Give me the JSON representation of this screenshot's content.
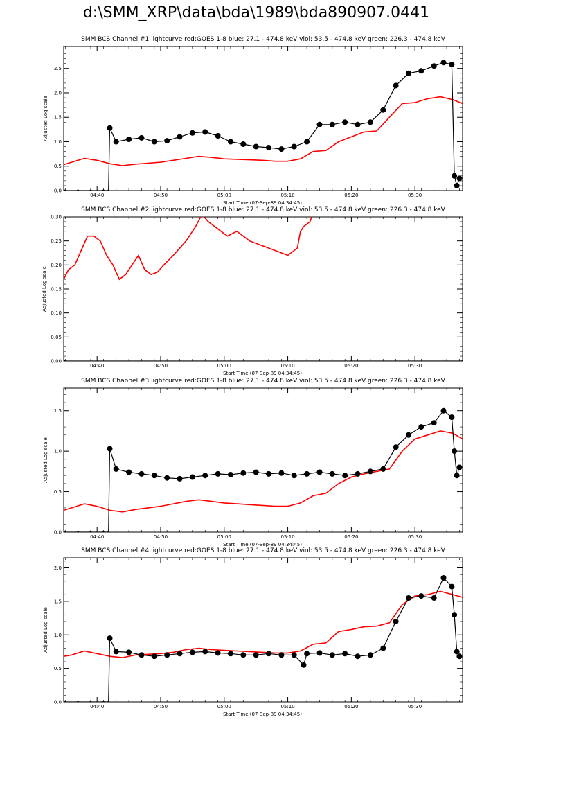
{
  "page": {
    "title": "d:\\SMM_XRP\\data\\bda\\1989\\bda890907.0441"
  },
  "colors": {
    "goes": "#ff0000",
    "bcs": "#000000",
    "axes": "#000000"
  },
  "chart_data": [
    {
      "type": "line",
      "title": "SMM BCS Channel #1 lightcurve  red:GOES 1-8  blue: 27.1 - 474.8 keV  viol: 53.5 - 474.8 keV  green: 226.3 - 474.8 keV",
      "xlabel": "Start Time (07-Sep-89 04:34:45)",
      "ylabel": "Adjusted Log scale",
      "xlim": [
        34.75,
        97.5
      ],
      "ylim": [
        0,
        2.95
      ],
      "x_ticks": [
        40,
        50,
        60,
        70,
        80,
        90
      ],
      "x_tick_labels": [
        "04:40",
        "04:50",
        "05:00",
        "05:10",
        "05:20",
        "05:30"
      ],
      "y_ticks": [
        0.0,
        0.5,
        1.0,
        1.5,
        2.0,
        2.5
      ],
      "y_tick_labels": [
        "0.0",
        "0.5",
        "1.0",
        "1.5",
        "2.0",
        "2.5"
      ],
      "grid": false,
      "series": [
        {
          "color": "#ff0000",
          "x": [
            34.75,
            36,
            38,
            40,
            42,
            44,
            46,
            48,
            50,
            52,
            54,
            56,
            58,
            60,
            62,
            64,
            66,
            68,
            70,
            72,
            74,
            76,
            78,
            80,
            82,
            84,
            86,
            88,
            90,
            92,
            94,
            96,
            97.5
          ],
          "y": [
            0.53,
            0.58,
            0.66,
            0.62,
            0.55,
            0.51,
            0.54,
            0.56,
            0.58,
            0.62,
            0.66,
            0.7,
            0.68,
            0.65,
            0.64,
            0.63,
            0.62,
            0.6,
            0.6,
            0.65,
            0.8,
            0.82,
            1.0,
            1.1,
            1.2,
            1.22,
            1.5,
            1.78,
            1.8,
            1.88,
            1.92,
            1.86,
            1.78
          ]
        },
        {
          "color": "#000000",
          "x": [
            35,
            37,
            39,
            41,
            41.8,
            42,
            43,
            45,
            47,
            49,
            51,
            53,
            55,
            57,
            59,
            61,
            63,
            65,
            67,
            69,
            71,
            73,
            75,
            77,
            79,
            81,
            83,
            85,
            87,
            89,
            91,
            93,
            94.5,
            95.8,
            96.2,
            96.6,
            97
          ],
          "y": [
            0,
            0,
            0,
            0,
            0,
            1.28,
            1.0,
            1.05,
            1.08,
            1.0,
            1.02,
            1.1,
            1.18,
            1.2,
            1.12,
            1.0,
            0.95,
            0.9,
            0.88,
            0.85,
            0.9,
            1.0,
            1.35,
            1.35,
            1.4,
            1.35,
            1.4,
            1.65,
            2.15,
            2.4,
            2.45,
            2.55,
            2.62,
            2.58,
            0.3,
            0.1,
            0.25
          ]
        }
      ]
    },
    {
      "type": "line",
      "title": "SMM BCS Channel #2 lightcurve  red:GOES 1-8  blue: 27.1 - 474.8 keV  viol: 53.5 - 474.8 keV  green: 226.3 - 474.8 keV",
      "xlabel": "Start Time (07-Sep-89 04:34:45)",
      "ylabel": "Adjusted Log scale",
      "xlim": [
        34.75,
        97.5
      ],
      "ylim": [
        0,
        0.3
      ],
      "x_ticks": [
        40,
        50,
        60,
        70,
        80,
        90
      ],
      "x_tick_labels": [
        "04:40",
        "04:50",
        "05:00",
        "05:10",
        "05:20",
        "05:30"
      ],
      "y_ticks": [
        0.0,
        0.05,
        0.1,
        0.15,
        0.2,
        0.25,
        0.3
      ],
      "y_tick_labels": [
        "0.00",
        "0.05",
        "0.10",
        "0.15",
        "0.20",
        "0.25",
        "0.30"
      ],
      "grid": false,
      "series": [
        {
          "color": "#ff0000",
          "x": [
            34.75,
            35.5,
            36.5,
            37.5,
            38.5,
            39.5,
            40.5,
            41.5,
            42.5,
            43.5,
            44.5,
            45.5,
            46.5,
            47.5,
            48.5,
            49.5,
            50.5,
            52,
            54,
            55.5,
            56.5,
            57.5,
            58.5,
            59.5,
            60.5,
            62,
            64,
            66,
            68,
            70,
            71.5,
            72,
            72.5,
            73.5,
            74
          ],
          "y": [
            0.17,
            0.19,
            0.2,
            0.23,
            0.26,
            0.26,
            0.25,
            0.22,
            0.2,
            0.17,
            0.18,
            0.2,
            0.22,
            0.19,
            0.18,
            0.185,
            0.2,
            0.22,
            0.25,
            0.28,
            0.305,
            0.29,
            0.28,
            0.27,
            0.26,
            0.27,
            0.25,
            0.24,
            0.23,
            0.22,
            0.235,
            0.27,
            0.28,
            0.29,
            0.31
          ]
        },
        {
          "color": "#000000",
          "x": [
            35,
            97.5
          ],
          "y": [
            0,
            0
          ]
        }
      ]
    },
    {
      "type": "line",
      "title": "SMM BCS Channel #3 lightcurve  red:GOES 1-8  blue: 27.1 - 474.8 keV  viol: 53.5 - 474.8 keV  green: 226.3 - 474.8 keV",
      "xlabel": "Start Time (07-Sep-89 04:34:45)",
      "ylabel": "Adjusted Log scale",
      "xlim": [
        34.75,
        97.5
      ],
      "ylim": [
        0,
        1.78
      ],
      "x_ticks": [
        40,
        50,
        60,
        70,
        80,
        90
      ],
      "x_tick_labels": [
        "04:40",
        "04:50",
        "05:00",
        "05:10",
        "05:20",
        "05:30"
      ],
      "y_ticks": [
        0.0,
        0.5,
        1.0,
        1.5
      ],
      "y_tick_labels": [
        "0.0",
        "0.5",
        "1.0",
        "1.5"
      ],
      "grid": false,
      "series": [
        {
          "color": "#ff0000",
          "x": [
            34.75,
            36,
            38,
            40,
            42,
            44,
            46,
            48,
            50,
            52,
            54,
            56,
            58,
            60,
            62,
            64,
            66,
            68,
            70,
            72,
            74,
            76,
            78,
            80,
            82,
            84,
            86,
            88,
            90,
            92,
            94,
            96,
            97.5
          ],
          "y": [
            0.27,
            0.3,
            0.35,
            0.32,
            0.27,
            0.25,
            0.28,
            0.3,
            0.32,
            0.35,
            0.38,
            0.4,
            0.38,
            0.36,
            0.35,
            0.34,
            0.33,
            0.32,
            0.32,
            0.36,
            0.45,
            0.48,
            0.6,
            0.68,
            0.72,
            0.75,
            0.78,
            1.0,
            1.15,
            1.2,
            1.25,
            1.22,
            1.15
          ]
        },
        {
          "color": "#000000",
          "x": [
            35,
            37,
            39,
            41,
            41.8,
            42,
            43,
            45,
            47,
            49,
            51,
            53,
            55,
            57,
            59,
            61,
            63,
            65,
            67,
            69,
            71,
            73,
            75,
            77,
            79,
            81,
            83,
            85,
            87,
            89,
            91,
            93,
            94.5,
            95.8,
            96.2,
            96.6,
            97
          ],
          "y": [
            0,
            0,
            0,
            0,
            0,
            1.03,
            0.78,
            0.74,
            0.72,
            0.7,
            0.67,
            0.66,
            0.68,
            0.7,
            0.72,
            0.71,
            0.73,
            0.74,
            0.72,
            0.73,
            0.7,
            0.72,
            0.74,
            0.72,
            0.7,
            0.72,
            0.75,
            0.78,
            1.05,
            1.2,
            1.3,
            1.35,
            1.5,
            1.42,
            1.0,
            0.7,
            0.8
          ]
        }
      ]
    },
    {
      "type": "line",
      "title": "SMM BCS Channel #4 lightcurve  red:GOES 1-8  blue: 27.1 - 474.8 keV  viol: 53.5 - 474.8 keV  green: 226.3 - 474.8 keV",
      "xlabel": "Start Time (07-Sep-89 04:34:45)",
      "ylabel": "Adjusted Log scale",
      "xlim": [
        34.75,
        97.5
      ],
      "ylim": [
        0,
        2.15
      ],
      "x_ticks": [
        40,
        50,
        60,
        70,
        80,
        90
      ],
      "x_tick_labels": [
        "04:40",
        "04:50",
        "05:00",
        "05:10",
        "05:20",
        "05:30"
      ],
      "y_ticks": [
        0.0,
        0.5,
        1.0,
        1.5,
        2.0
      ],
      "y_tick_labels": [
        "0.0",
        "0.5",
        "1.0",
        "1.5",
        "2.0"
      ],
      "grid": false,
      "series": [
        {
          "color": "#ff0000",
          "x": [
            34.75,
            36,
            38,
            40,
            42,
            44,
            46,
            48,
            50,
            52,
            54,
            56,
            58,
            60,
            62,
            64,
            66,
            68,
            70,
            72,
            74,
            76,
            78,
            80,
            82,
            84,
            86,
            88,
            90,
            92,
            94,
            96,
            97.5
          ],
          "y": [
            0.68,
            0.7,
            0.76,
            0.72,
            0.68,
            0.66,
            0.7,
            0.71,
            0.72,
            0.74,
            0.78,
            0.8,
            0.78,
            0.77,
            0.76,
            0.75,
            0.74,
            0.73,
            0.73,
            0.76,
            0.86,
            0.88,
            1.05,
            1.08,
            1.12,
            1.13,
            1.18,
            1.45,
            1.58,
            1.6,
            1.65,
            1.6,
            1.56
          ]
        },
        {
          "color": "#000000",
          "x": [
            35,
            37,
            39,
            41,
            41.8,
            42,
            43,
            45,
            47,
            49,
            51,
            53,
            55,
            57,
            59,
            61,
            63,
            65,
            67,
            69,
            71,
            72.5,
            73,
            75,
            77,
            79,
            81,
            83,
            85,
            87,
            89,
            91,
            93,
            94.5,
            95.8,
            96.2,
            96.6,
            97
          ],
          "y": [
            0,
            0,
            0,
            0,
            0,
            0.95,
            0.75,
            0.74,
            0.7,
            0.68,
            0.7,
            0.72,
            0.74,
            0.75,
            0.73,
            0.72,
            0.7,
            0.7,
            0.72,
            0.7,
            0.7,
            0.55,
            0.72,
            0.73,
            0.7,
            0.72,
            0.68,
            0.7,
            0.8,
            1.2,
            1.55,
            1.58,
            1.55,
            1.85,
            1.72,
            1.3,
            0.75,
            0.68
          ]
        }
      ]
    }
  ]
}
